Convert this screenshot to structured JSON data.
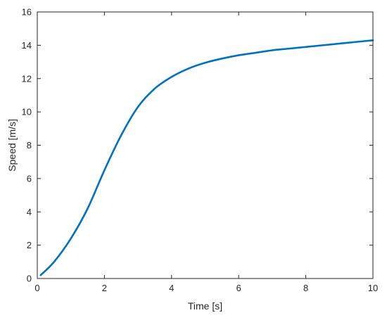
{
  "chart_data": {
    "type": "line",
    "title": "",
    "xlabel": "Time [s]",
    "ylabel": "Speed [m/s]",
    "xlim": [
      0,
      10
    ],
    "ylim": [
      0,
      16
    ],
    "xticks": [
      0,
      2,
      4,
      6,
      8,
      10
    ],
    "yticks": [
      0,
      2,
      4,
      6,
      8,
      10,
      12,
      14,
      16
    ],
    "grid": false,
    "legend": "none",
    "series": [
      {
        "color": "#0072BD",
        "x": [
          0.1,
          0.5,
          1.0,
          1.5,
          2.0,
          2.5,
          3.0,
          3.5,
          4.0,
          4.5,
          5.0,
          5.5,
          6.0,
          6.5,
          7.0,
          7.5,
          8.0,
          8.5,
          9.0,
          9.5,
          10.0
        ],
        "y": [
          0.2,
          1.0,
          2.4,
          4.2,
          6.5,
          8.6,
          10.3,
          11.4,
          12.1,
          12.6,
          12.95,
          13.2,
          13.4,
          13.55,
          13.7,
          13.8,
          13.9,
          14.0,
          14.1,
          14.2,
          14.3
        ]
      }
    ]
  }
}
